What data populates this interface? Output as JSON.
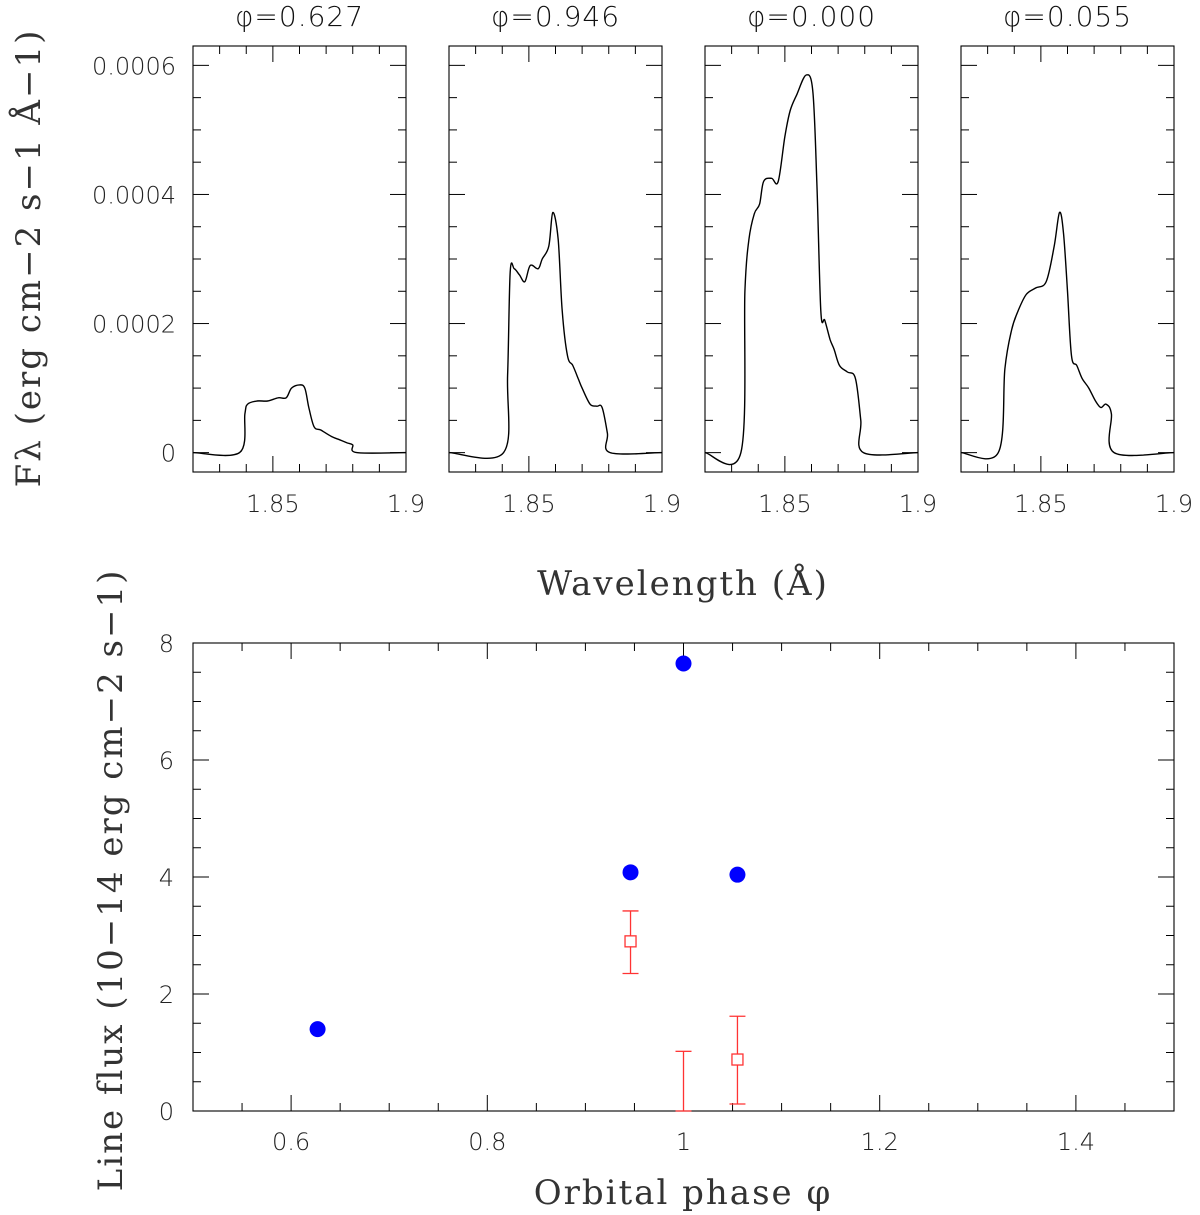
{
  "chart_data": [
    {
      "type": "line",
      "title": "φ=0.627",
      "xlim": [
        1.82,
        1.9
      ],
      "ylim": [
        -3e-05,
        0.00063
      ],
      "x_ticks": [
        1.85,
        1.9
      ],
      "x_tick_labels": [
        "1.85",
        "1.9"
      ],
      "y_ticks": [
        0,
        0.0002,
        0.0004,
        0.0006
      ],
      "y_tick_labels": [
        "0",
        "0.0002",
        "0.0004",
        "0.0006"
      ],
      "xlabel": "Wavelength (Å)",
      "ylabel": "Fλ (erg cm−2 s−1 Å−1)",
      "x": [
        1.82,
        1.8375,
        1.8395,
        1.8405,
        1.844,
        1.848,
        1.852,
        1.855,
        1.857,
        1.86,
        1.862,
        1.8635,
        1.8655,
        1.868,
        1.872,
        1.875,
        1.878,
        1.88,
        1.8815,
        1.9
      ],
      "values": [
        0,
        0,
        6e-05,
        7.5e-05,
        8e-05,
        8e-05,
        8.5e-05,
        8.5e-05,
        0.0001,
        0.000105,
        0.0001,
        7e-05,
        4e-05,
        3.5e-05,
        2.5e-05,
        2e-05,
        1.5e-05,
        1.2e-05,
        0,
        0
      ]
    },
    {
      "type": "line",
      "title": "φ=0.946",
      "xlim": [
        1.82,
        1.9
      ],
      "ylim": [
        -3e-05,
        0.00063
      ],
      "x_ticks": [
        1.85,
        1.9
      ],
      "x_tick_labels": [
        "1.85",
        "1.9"
      ],
      "y_ticks": [
        0,
        0.0002,
        0.0004,
        0.0006
      ],
      "x": [
        1.82,
        1.8405,
        1.842,
        1.843,
        1.8445,
        1.8465,
        1.8485,
        1.8505,
        1.8535,
        1.855,
        1.8575,
        1.859,
        1.861,
        1.8625,
        1.8645,
        1.8665,
        1.8685,
        1.87,
        1.873,
        1.8755,
        1.8775,
        1.8795,
        1.8805,
        1.9
      ],
      "values": [
        0,
        0,
        0.00012,
        0.00028,
        0.000285,
        0.000275,
        0.000265,
        0.00029,
        0.000285,
        0.0003,
        0.00032,
        0.000372,
        0.00033,
        0.00022,
        0.00015,
        0.000135,
        0.000115,
        0.0001,
        7.5e-05,
        7.2e-05,
        7e-05,
        3e-05,
        0,
        0
      ]
    },
    {
      "type": "line",
      "title": "φ=0.000",
      "xlim": [
        1.82,
        1.9
      ],
      "ylim": [
        -3e-05,
        0.00063
      ],
      "x_ticks": [
        1.85,
        1.9
      ],
      "x_tick_labels": [
        "1.85",
        "1.9"
      ],
      "y_ticks": [
        0,
        0.0002,
        0.0004,
        0.0006
      ],
      "x": [
        1.82,
        1.8335,
        1.835,
        1.8365,
        1.8385,
        1.8405,
        1.842,
        1.845,
        1.8475,
        1.85,
        1.852,
        1.8545,
        1.858,
        1.8605,
        1.862,
        1.8635,
        1.865,
        1.867,
        1.8685,
        1.8705,
        1.8735,
        1.8765,
        1.8785,
        1.8795,
        1.9
      ],
      "values": [
        0,
        0,
        0.00025,
        0.00033,
        0.00037,
        0.000385,
        0.00042,
        0.000425,
        0.00042,
        0.00049,
        0.00053,
        0.000555,
        0.000585,
        0.00056,
        0.00042,
        0.00022,
        0.000205,
        0.000175,
        0.00016,
        0.000135,
        0.000125,
        0.000115,
        5e-05,
        0,
        0
      ]
    },
    {
      "type": "line",
      "title": "φ=0.055",
      "xlim": [
        1.82,
        1.9
      ],
      "ylim": [
        -3e-05,
        0.00063
      ],
      "x_ticks": [
        1.85,
        1.9
      ],
      "x_tick_labels": [
        "1.85",
        "1.9"
      ],
      "y_ticks": [
        0,
        0.0002,
        0.0004,
        0.0006
      ],
      "x": [
        1.82,
        1.834,
        1.8365,
        1.839,
        1.8415,
        1.8445,
        1.848,
        1.852,
        1.855,
        1.857,
        1.8585,
        1.86,
        1.8615,
        1.8635,
        1.8655,
        1.868,
        1.8705,
        1.8725,
        1.8745,
        1.8765,
        1.8775,
        1.9
      ],
      "values": [
        0,
        0,
        0.00013,
        0.00019,
        0.00022,
        0.000245,
        0.000255,
        0.000265,
        0.00032,
        0.000372,
        0.00034,
        0.00025,
        0.00015,
        0.000135,
        0.000115,
        0.0001,
        8e-05,
        7e-05,
        7.5e-05,
        6e-05,
        0,
        0
      ]
    },
    {
      "type": "scatter",
      "xlabel": "Orbital phase φ",
      "ylabel": "Line flux (10−14 erg cm−2 s−1)",
      "xlim": [
        0.5,
        1.5
      ],
      "ylim": [
        0,
        8
      ],
      "x_ticks": [
        0.6,
        0.8,
        1,
        1.2,
        1.4
      ],
      "x_tick_labels": [
        "0.6",
        "0.8",
        "1",
        "1.2",
        "1.4"
      ],
      "y_ticks": [
        0,
        2,
        4,
        6,
        8
      ],
      "y_tick_labels": [
        "0",
        "2",
        "4",
        "6",
        "8"
      ],
      "series": [
        {
          "marker": "filled-circle",
          "color": "#0000ff",
          "x": [
            0.627,
            0.946,
            1.0,
            1.055
          ],
          "values": [
            1.4,
            4.08,
            7.65,
            4.04
          ]
        },
        {
          "marker": "open-square-with-errorbars",
          "color": "#ff3333",
          "x": [
            0.946,
            1.055
          ],
          "values": [
            2.9,
            0.88
          ],
          "err_low": [
            2.35,
            0.12
          ],
          "err_high": [
            3.42,
            1.62
          ]
        },
        {
          "marker": "upper-limit-errorbar",
          "color": "#ff3333",
          "x": [
            1.0
          ],
          "err_low": [
            0
          ],
          "err_high": [
            1.02
          ]
        }
      ]
    }
  ]
}
